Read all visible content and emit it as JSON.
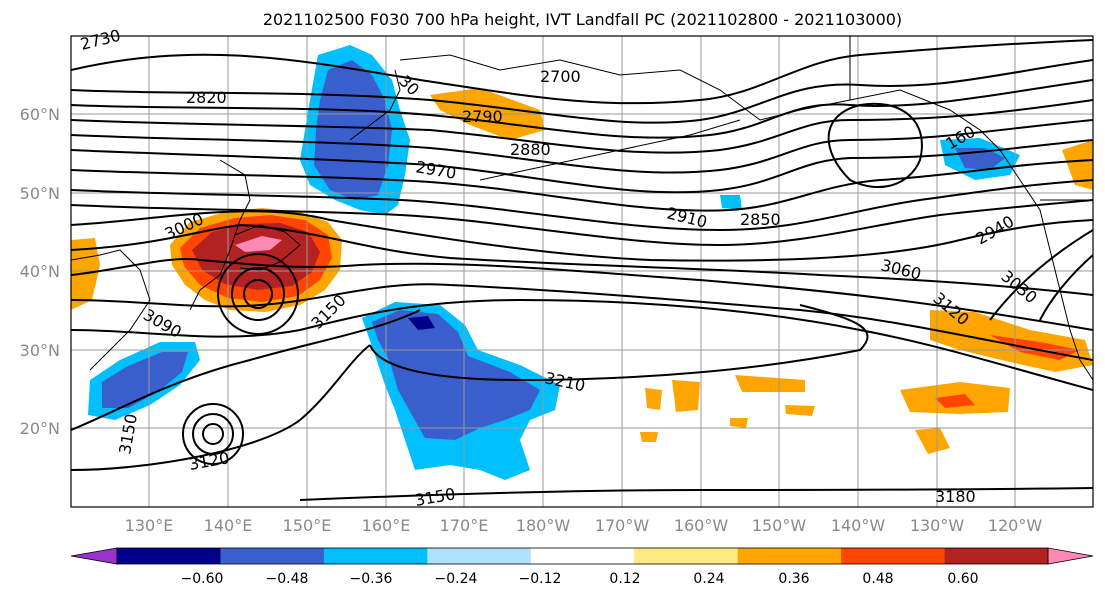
{
  "title": "2021102500 F030 700 hPa height, IVT Landfall PC (2021102800 - 2021103000)",
  "lat_labels": [
    "60°N",
    "50°N",
    "40°N",
    "30°N",
    "20°N"
  ],
  "lon_labels": [
    "130°E",
    "140°E",
    "150°E",
    "160°E",
    "170°E",
    "180°W",
    "170°W",
    "160°W",
    "150°W",
    "140°W",
    "130°W",
    "120°W"
  ],
  "contour_labels": [
    "2730",
    "2820",
    "30",
    "2700",
    "2790",
    "2880",
    "2970",
    "3000",
    "2910",
    "2850",
    "160",
    "3060",
    "2940",
    "3030",
    "3120",
    "3150",
    "3090",
    "3210",
    "3150",
    "3120",
    "3150",
    "3180"
  ],
  "colorbar": {
    "colors": [
      "#9a32cd",
      "#00008b",
      "#3a5fcd",
      "#00bfff",
      "#b0e2ff",
      "#ffffff",
      "#ffe982",
      "#ffa500",
      "#ff4500",
      "#b22222",
      "#ff88b4"
    ],
    "ticks": [
      "−0.60",
      "−0.48",
      "−0.36",
      "−0.24",
      "−0.12",
      "0.12",
      "0.24",
      "0.36",
      "0.48",
      "0.60"
    ]
  }
}
